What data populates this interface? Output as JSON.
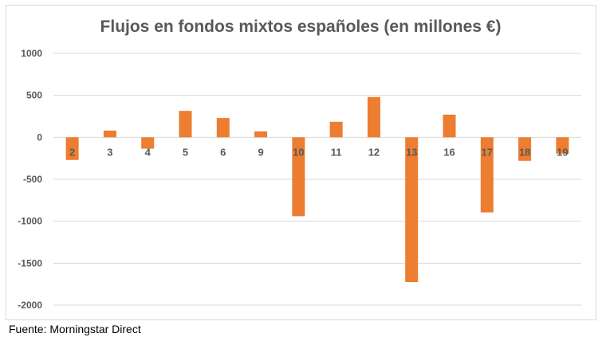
{
  "chart_data": {
    "type": "bar",
    "title": "Flujos en fondos mixtos españoles (en millones €)",
    "xlabel": "",
    "ylabel": "",
    "categories": [
      "2",
      "3",
      "4",
      "5",
      "6",
      "9",
      "10",
      "11",
      "12",
      "13",
      "16",
      "17",
      "18",
      "19"
    ],
    "values": [
      -270,
      80,
      -135,
      315,
      230,
      70,
      -940,
      185,
      480,
      -1725,
      270,
      -895,
      -280,
      -195
    ],
    "ylim": [
      -2000,
      1000
    ],
    "yticks": [
      1000,
      500,
      0,
      -500,
      -1000,
      -1500,
      -2000
    ],
    "ytick_labels": [
      "1000",
      "500",
      "0",
      "-500",
      "-1000",
      "-1500",
      "-2000"
    ],
    "grid": true,
    "legend": "none",
    "bar_color": "#ed7d31"
  },
  "source": "Fuente: Morningstar Direct"
}
